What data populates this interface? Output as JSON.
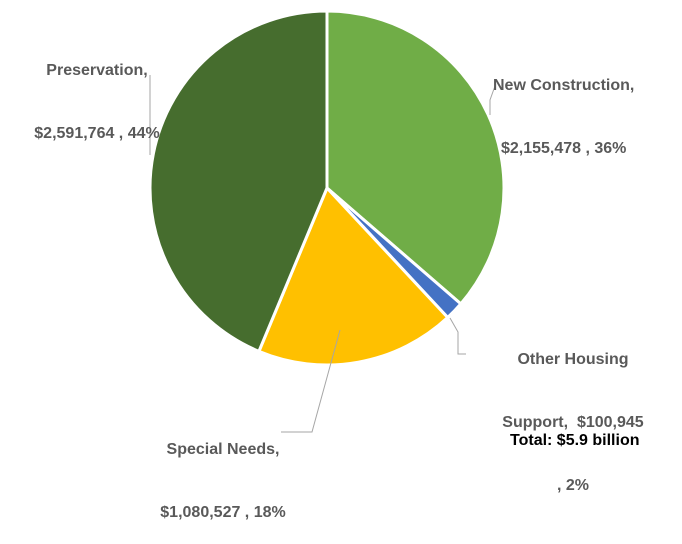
{
  "chart_data": {
    "type": "pie",
    "slices": [
      {
        "name": "New Construction",
        "value": 2155478,
        "percent": 36,
        "color": "#70ad47",
        "label_line1": "New Construction,",
        "label_line2": "$2,155,478 , 36%",
        "label_line3": ""
      },
      {
        "name": "Other Housing Support",
        "value": 100945,
        "percent": 2,
        "color": "#4472c4",
        "label_line1": "Other Housing",
        "label_line2": "Support,  $100,945",
        "label_line3": ", 2%"
      },
      {
        "name": "Special Needs",
        "value": 1080527,
        "percent": 18,
        "color": "#ffc000",
        "label_line1": "Special Needs,",
        "label_line2": "$1,080,527 , 18%",
        "label_line3": ""
      },
      {
        "name": "Preservation",
        "value": 2591764,
        "percent": 44,
        "color": "#466d2e",
        "label_line1": "Preservation,",
        "label_line2": "$2,591,764 , 44%",
        "label_line3": ""
      }
    ],
    "total_text": "Total: $5.9 billion"
  }
}
